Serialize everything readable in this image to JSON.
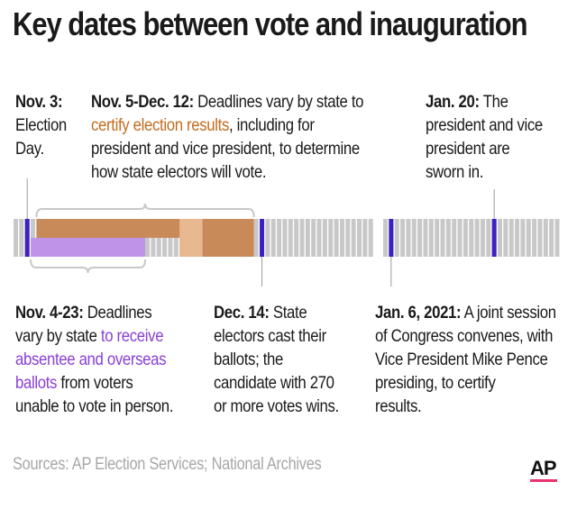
{
  "title": "Key dates between vote and inauguration",
  "notes": {
    "nov3": {
      "date": "Nov. 3:",
      "lines": [
        "Election",
        "Day."
      ]
    },
    "nov5": {
      "date": "Nov. 5-Dec. 12:",
      "line1": " Deadlines vary by state to",
      "highlight": "certify election results",
      "line2": ", including for",
      "line3": "president and vice president, to determine",
      "line4": "how state electors will vote."
    },
    "jan20": {
      "date": "Jan. 20:",
      "line1": " The",
      "lines": [
        "president and vice",
        "president are",
        "sworn in."
      ]
    },
    "nov4": {
      "date": "Nov. 4-23:",
      "line1": " Deadlines",
      "line2a": "vary by state ",
      "highlight1": "to receive",
      "highlight2": "absentee and overseas",
      "highlight3": "ballots",
      "line4": " from voters",
      "line5": "unable to vote in person."
    },
    "dec14": {
      "date": "Dec. 14:",
      "line1": " State",
      "lines": [
        "electors cast their",
        "ballots; the",
        "candidate with 270",
        "or more votes wins."
      ]
    },
    "jan6": {
      "date": "Jan. 6, 2021:",
      "line1": " A joint session",
      "lines": [
        "of Congress convenes, with",
        "Vice President Mike Pence",
        "presiding, to certify",
        "results."
      ]
    }
  },
  "source": "Sources: AP Election Services; National Archives",
  "logo": "AP",
  "colors": {
    "day_cell": "#c8c8c8",
    "orange_band": "#c98a5a",
    "orange_light": "#e8b890",
    "purple_band": "#bf93e8",
    "marker": "#3d1fc2",
    "bracket": "#c8c8c8",
    "leader": "#9a9a9a"
  }
}
